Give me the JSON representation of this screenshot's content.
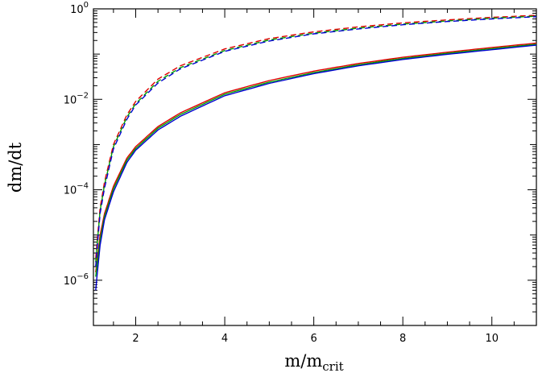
{
  "chart_data": {
    "type": "line",
    "xlabel": "m/m",
    "xlabel_sub": "crit",
    "ylabel": "dm/dt",
    "xlim": [
      1.05,
      11.0
    ],
    "ylim": [
      1e-07,
      1.0
    ],
    "yscale": "log",
    "grid": false,
    "x_ticks": [
      {
        "value": 2,
        "label": "2"
      },
      {
        "value": 4,
        "label": "4"
      },
      {
        "value": 6,
        "label": "6"
      },
      {
        "value": 8,
        "label": "8"
      },
      {
        "value": 10,
        "label": "10"
      }
    ],
    "y_ticks": [
      {
        "value": 1e-06,
        "base": "10",
        "exp": "−6"
      },
      {
        "value": 0.0001,
        "base": "10",
        "exp": "−4"
      },
      {
        "value": 0.01,
        "base": "10",
        "exp": "−2"
      },
      {
        "value": 1,
        "base": "10",
        "exp": "0"
      }
    ],
    "series": [
      {
        "style": "solid",
        "color": "#e00000",
        "x": [
          1.1,
          1.2,
          1.3,
          1.5,
          1.8,
          2.0,
          2.5,
          3,
          4,
          5,
          6,
          7,
          8,
          9,
          10,
          11
        ],
        "y": [
          1.5e-06,
          1e-05,
          3e-05,
          0.00012,
          0.0005,
          0.0009,
          0.0025,
          0.005,
          0.014,
          0.026,
          0.042,
          0.062,
          0.085,
          0.11,
          0.14,
          0.175
        ]
      },
      {
        "style": "solid",
        "color": "#00a000",
        "x": [
          1.1,
          1.2,
          1.3,
          1.5,
          1.8,
          2.0,
          2.5,
          3,
          4,
          5,
          6,
          7,
          8,
          9,
          10,
          11
        ],
        "y": [
          1.2e-06,
          8e-06,
          2.6e-05,
          0.000105,
          0.00045,
          0.00082,
          0.0023,
          0.0046,
          0.013,
          0.024,
          0.039,
          0.058,
          0.08,
          0.104,
          0.132,
          0.165
        ]
      },
      {
        "style": "solid",
        "color": "#0000d0",
        "x": [
          1.1,
          1.2,
          1.3,
          1.5,
          1.8,
          2.0,
          2.5,
          3,
          4,
          5,
          6,
          7,
          8,
          9,
          10,
          11
        ],
        "y": [
          6e-07,
          6e-06,
          2.2e-05,
          9e-05,
          0.0004,
          0.00075,
          0.0021,
          0.0042,
          0.012,
          0.0225,
          0.037,
          0.055,
          0.076,
          0.099,
          0.125,
          0.158
        ]
      },
      {
        "style": "dashed",
        "color": "#e00000",
        "x": [
          1.1,
          1.2,
          1.3,
          1.5,
          1.8,
          2.0,
          2.5,
          3,
          4,
          5,
          6,
          7,
          8,
          9,
          10,
          11
        ],
        "y": [
          3e-06,
          4e-05,
          0.00015,
          0.001,
          0.0045,
          0.009,
          0.028,
          0.055,
          0.13,
          0.22,
          0.31,
          0.4,
          0.49,
          0.57,
          0.65,
          0.72
        ]
      },
      {
        "style": "dashed",
        "color": "#00a000",
        "x": [
          1.1,
          1.2,
          1.3,
          1.5,
          1.8,
          2.0,
          2.5,
          3,
          4,
          5,
          6,
          7,
          8,
          9,
          10,
          11
        ],
        "y": [
          2.5e-06,
          3.5e-05,
          0.00013,
          0.0009,
          0.004,
          0.008,
          0.025,
          0.05,
          0.12,
          0.205,
          0.29,
          0.375,
          0.46,
          0.54,
          0.62,
          0.69
        ]
      },
      {
        "style": "dashed",
        "color": "#0000d0",
        "x": [
          1.1,
          1.2,
          1.3,
          1.5,
          1.8,
          2.0,
          2.5,
          3,
          4,
          5,
          6,
          7,
          8,
          9,
          10,
          11
        ],
        "y": [
          2e-06,
          3e-05,
          0.00011,
          0.0008,
          0.0036,
          0.0075,
          0.023,
          0.047,
          0.115,
          0.195,
          0.28,
          0.36,
          0.445,
          0.525,
          0.6,
          0.67
        ]
      }
    ]
  }
}
